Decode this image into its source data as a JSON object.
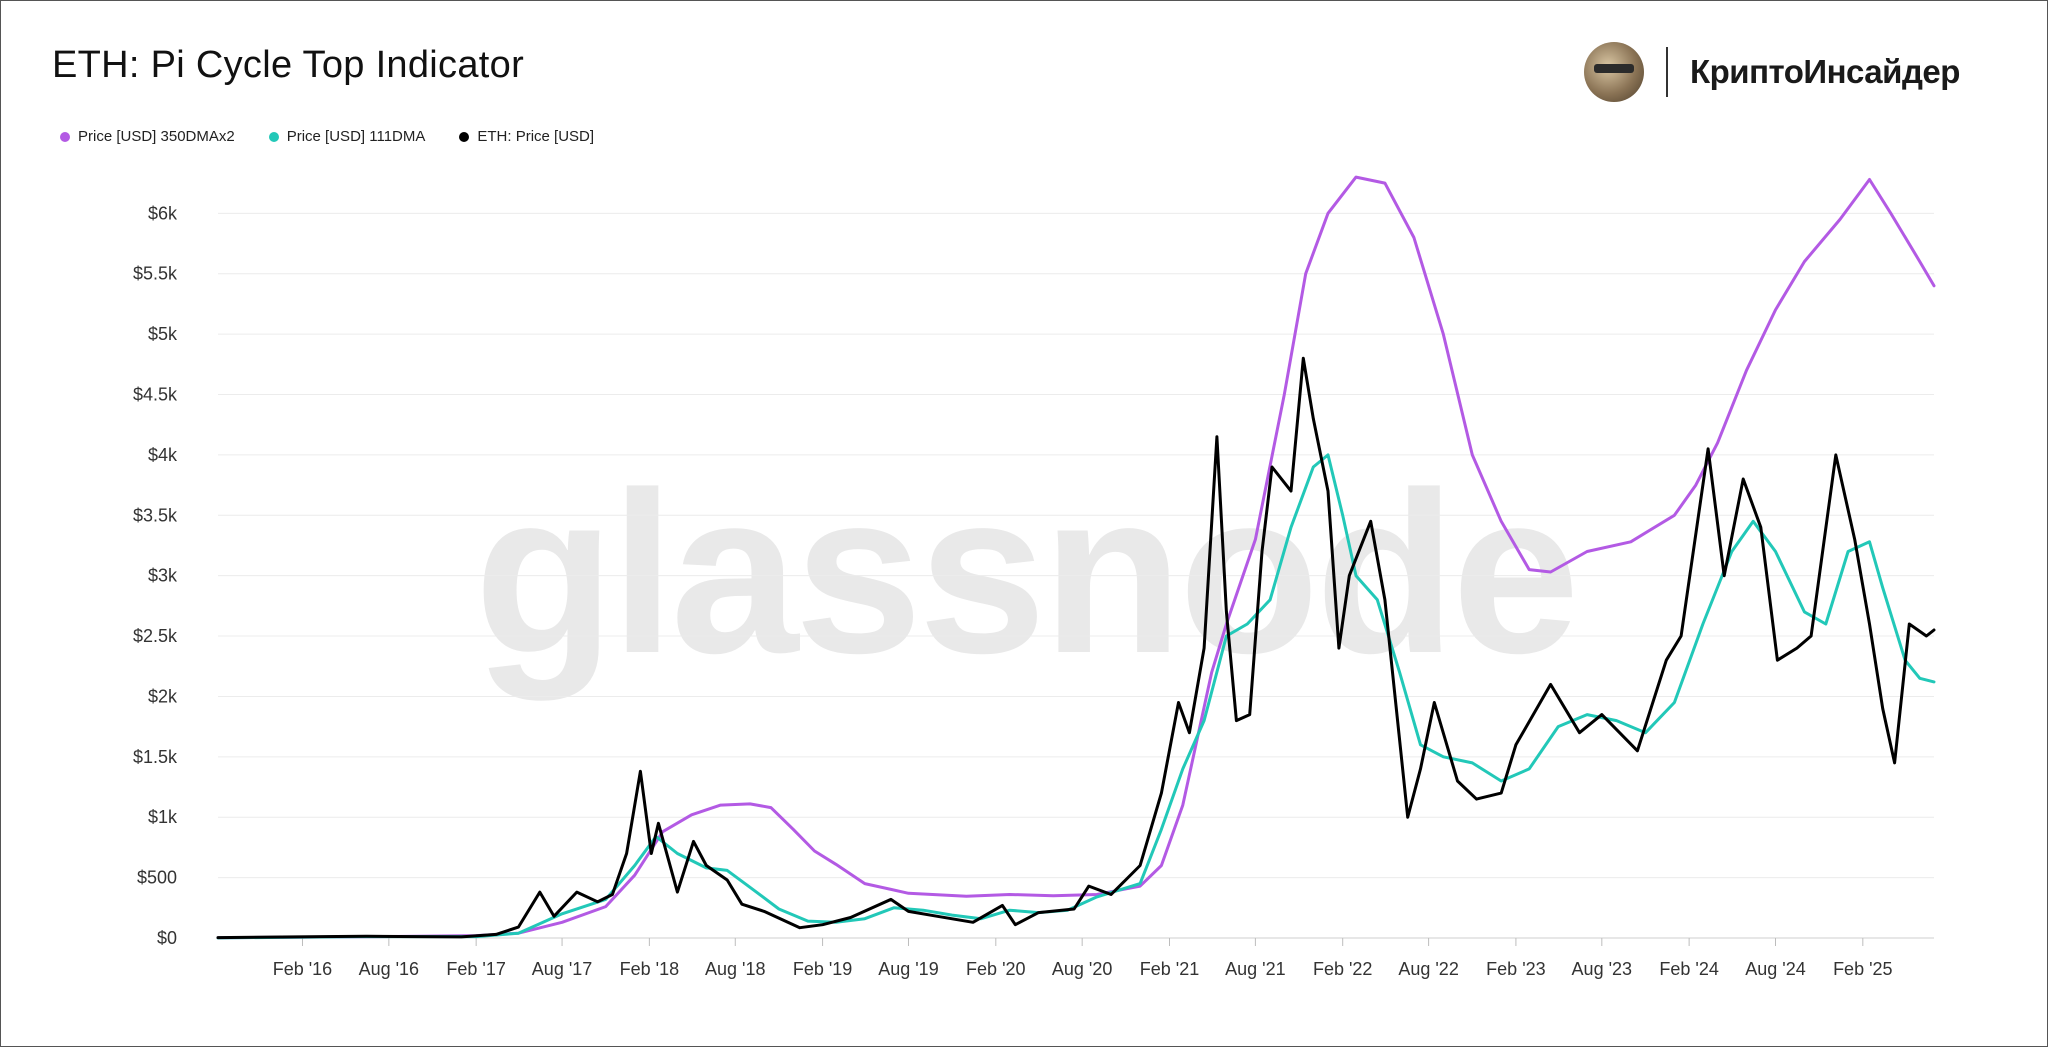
{
  "title": "ETH: Pi Cycle Top Indicator",
  "brand": {
    "name": "КриптоИнсайдер"
  },
  "watermark": "glassnode",
  "legend": [
    {
      "label": "Price [USD] 350DMAx2",
      "color": "#b35ae4"
    },
    {
      "label": "Price [USD] 111DMA",
      "color": "#22c8b8"
    },
    {
      "label": "ETH: Price [USD]",
      "color": "#000000"
    }
  ],
  "chart_data": {
    "type": "line",
    "title": "ETH: Pi Cycle Top Indicator",
    "x_range": [
      "2015-08-07",
      "2025-07-01"
    ],
    "ylim": [
      0,
      6400
    ],
    "grid": "horizontal",
    "legend_position": "top-left",
    "y_ticks": [
      {
        "value": 0,
        "label": "$0"
      },
      {
        "value": 500,
        "label": "$500"
      },
      {
        "value": 1000,
        "label": "$1k"
      },
      {
        "value": 1500,
        "label": "$1.5k"
      },
      {
        "value": 2000,
        "label": "$2k"
      },
      {
        "value": 2500,
        "label": "$2.5k"
      },
      {
        "value": 3000,
        "label": "$3k"
      },
      {
        "value": 3500,
        "label": "$3.5k"
      },
      {
        "value": 4000,
        "label": "$4k"
      },
      {
        "value": 4500,
        "label": "$4.5k"
      },
      {
        "value": 5000,
        "label": "$5k"
      },
      {
        "value": 5500,
        "label": "$5.5k"
      },
      {
        "value": 6000,
        "label": "$6k"
      }
    ],
    "x_ticks": [
      {
        "date": "2016-02-01",
        "label": "Feb '16"
      },
      {
        "date": "2016-08-01",
        "label": "Aug '16"
      },
      {
        "date": "2017-02-01",
        "label": "Feb '17"
      },
      {
        "date": "2017-08-01",
        "label": "Aug '17"
      },
      {
        "date": "2018-02-01",
        "label": "Feb '18"
      },
      {
        "date": "2018-08-01",
        "label": "Aug '18"
      },
      {
        "date": "2019-02-01",
        "label": "Feb '19"
      },
      {
        "date": "2019-08-01",
        "label": "Aug '19"
      },
      {
        "date": "2020-02-01",
        "label": "Feb '20"
      },
      {
        "date": "2020-08-01",
        "label": "Aug '20"
      },
      {
        "date": "2021-02-01",
        "label": "Feb '21"
      },
      {
        "date": "2021-08-01",
        "label": "Aug '21"
      },
      {
        "date": "2022-02-01",
        "label": "Feb '22"
      },
      {
        "date": "2022-08-01",
        "label": "Aug '22"
      },
      {
        "date": "2023-02-01",
        "label": "Feb '23"
      },
      {
        "date": "2023-08-01",
        "label": "Aug '23"
      },
      {
        "date": "2024-02-01",
        "label": "Feb '24"
      },
      {
        "date": "2024-08-01",
        "label": "Aug '24"
      },
      {
        "date": "2025-02-01",
        "label": "Feb '25"
      }
    ],
    "series": [
      {
        "name": "Price [USD] 350DMAx2",
        "color": "#b35ae4",
        "points": [
          [
            "2015-08-07",
            2
          ],
          [
            "2016-06-01",
            10
          ],
          [
            "2017-02-01",
            20
          ],
          [
            "2017-05-01",
            40
          ],
          [
            "2017-08-01",
            130
          ],
          [
            "2017-11-01",
            260
          ],
          [
            "2018-01-01",
            520
          ],
          [
            "2018-03-01",
            880
          ],
          [
            "2018-05-01",
            1020
          ],
          [
            "2018-07-01",
            1100
          ],
          [
            "2018-09-01",
            1110
          ],
          [
            "2018-10-15",
            1080
          ],
          [
            "2018-12-01",
            900
          ],
          [
            "2019-01-15",
            720
          ],
          [
            "2019-03-01",
            610
          ],
          [
            "2019-05-01",
            450
          ],
          [
            "2019-08-01",
            370
          ],
          [
            "2019-12-01",
            345
          ],
          [
            "2020-03-01",
            360
          ],
          [
            "2020-06-01",
            350
          ],
          [
            "2020-09-01",
            360
          ],
          [
            "2020-12-01",
            430
          ],
          [
            "2021-01-15",
            600
          ],
          [
            "2021-03-01",
            1100
          ],
          [
            "2021-05-01",
            2200
          ],
          [
            "2021-06-01",
            2600
          ],
          [
            "2021-08-01",
            3300
          ],
          [
            "2021-10-01",
            4500
          ],
          [
            "2021-11-15",
            5500
          ],
          [
            "2022-01-01",
            6000
          ],
          [
            "2022-03-01",
            6300
          ],
          [
            "2022-05-01",
            6250
          ],
          [
            "2022-07-01",
            5800
          ],
          [
            "2022-09-01",
            5000
          ],
          [
            "2022-11-01",
            4000
          ],
          [
            "2023-01-01",
            3450
          ],
          [
            "2023-03-01",
            3050
          ],
          [
            "2023-04-15",
            3030
          ],
          [
            "2023-07-01",
            3200
          ],
          [
            "2023-10-01",
            3280
          ],
          [
            "2024-01-01",
            3500
          ],
          [
            "2024-02-15",
            3750
          ],
          [
            "2024-04-01",
            4100
          ],
          [
            "2024-06-01",
            4700
          ],
          [
            "2024-08-01",
            5200
          ],
          [
            "2024-10-01",
            5600
          ],
          [
            "2024-12-15",
            5950
          ],
          [
            "2025-02-15",
            6280
          ],
          [
            "2025-04-01",
            6000
          ],
          [
            "2025-06-01",
            5600
          ],
          [
            "2025-07-01",
            5400
          ]
        ]
      },
      {
        "name": "Price [USD] 111DMA",
        "color": "#22c8b8",
        "points": [
          [
            "2015-08-07",
            1
          ],
          [
            "2016-06-01",
            12
          ],
          [
            "2017-02-01",
            12
          ],
          [
            "2017-05-01",
            40
          ],
          [
            "2017-08-01",
            200
          ],
          [
            "2017-11-01",
            320
          ],
          [
            "2018-01-01",
            600
          ],
          [
            "2018-02-15",
            840
          ],
          [
            "2018-04-01",
            700
          ],
          [
            "2018-06-01",
            580
          ],
          [
            "2018-07-15",
            560
          ],
          [
            "2018-09-01",
            420
          ],
          [
            "2018-11-01",
            240
          ],
          [
            "2019-01-01",
            140
          ],
          [
            "2019-03-01",
            130
          ],
          [
            "2019-05-01",
            160
          ],
          [
            "2019-07-01",
            250
          ],
          [
            "2019-09-01",
            230
          ],
          [
            "2019-11-01",
            190
          ],
          [
            "2020-01-01",
            160
          ],
          [
            "2020-03-01",
            230
          ],
          [
            "2020-05-01",
            210
          ],
          [
            "2020-07-01",
            230
          ],
          [
            "2020-09-01",
            340
          ],
          [
            "2020-12-01",
            450
          ],
          [
            "2021-01-15",
            900
          ],
          [
            "2021-03-01",
            1400
          ],
          [
            "2021-04-15",
            1800
          ],
          [
            "2021-06-01",
            2500
          ],
          [
            "2021-07-15",
            2600
          ],
          [
            "2021-09-01",
            2800
          ],
          [
            "2021-10-15",
            3400
          ],
          [
            "2021-12-01",
            3900
          ],
          [
            "2022-01-01",
            4000
          ],
          [
            "2022-02-01",
            3500
          ],
          [
            "2022-03-01",
            3000
          ],
          [
            "2022-04-15",
            2800
          ],
          [
            "2022-06-01",
            2200
          ],
          [
            "2022-07-15",
            1600
          ],
          [
            "2022-09-01",
            1500
          ],
          [
            "2022-11-01",
            1450
          ],
          [
            "2023-01-01",
            1300
          ],
          [
            "2023-03-01",
            1400
          ],
          [
            "2023-05-01",
            1750
          ],
          [
            "2023-07-01",
            1850
          ],
          [
            "2023-09-01",
            1800
          ],
          [
            "2023-11-01",
            1700
          ],
          [
            "2024-01-01",
            1950
          ],
          [
            "2024-03-01",
            2600
          ],
          [
            "2024-05-01",
            3200
          ],
          [
            "2024-06-15",
            3450
          ],
          [
            "2024-08-01",
            3200
          ],
          [
            "2024-10-01",
            2700
          ],
          [
            "2024-11-15",
            2600
          ],
          [
            "2025-01-01",
            3200
          ],
          [
            "2025-02-15",
            3280
          ],
          [
            "2025-03-15",
            2900
          ],
          [
            "2025-05-01",
            2300
          ],
          [
            "2025-06-01",
            2150
          ],
          [
            "2025-07-01",
            2120
          ]
        ]
      },
      {
        "name": "ETH: Price [USD]",
        "color": "#000000",
        "points": [
          [
            "2015-08-07",
            3
          ],
          [
            "2016-03-15",
            12
          ],
          [
            "2016-06-15",
            15
          ],
          [
            "2016-10-01",
            12
          ],
          [
            "2017-01-01",
            9
          ],
          [
            "2017-03-15",
            30
          ],
          [
            "2017-05-01",
            90
          ],
          [
            "2017-06-15",
            380
          ],
          [
            "2017-07-15",
            180
          ],
          [
            "2017-09-01",
            380
          ],
          [
            "2017-10-15",
            300
          ],
          [
            "2017-11-15",
            360
          ],
          [
            "2017-12-15",
            700
          ],
          [
            "2018-01-13",
            1380
          ],
          [
            "2018-02-05",
            700
          ],
          [
            "2018-02-20",
            950
          ],
          [
            "2018-04-01",
            380
          ],
          [
            "2018-05-05",
            800
          ],
          [
            "2018-06-01",
            600
          ],
          [
            "2018-07-15",
            480
          ],
          [
            "2018-08-15",
            280
          ],
          [
            "2018-10-01",
            220
          ],
          [
            "2018-12-15",
            85
          ],
          [
            "2019-02-01",
            110
          ],
          [
            "2019-04-01",
            170
          ],
          [
            "2019-06-25",
            320
          ],
          [
            "2019-08-01",
            220
          ],
          [
            "2019-10-01",
            180
          ],
          [
            "2019-12-15",
            130
          ],
          [
            "2020-02-15",
            270
          ],
          [
            "2020-03-13",
            110
          ],
          [
            "2020-05-01",
            210
          ],
          [
            "2020-07-15",
            240
          ],
          [
            "2020-08-15",
            430
          ],
          [
            "2020-10-01",
            360
          ],
          [
            "2020-12-01",
            600
          ],
          [
            "2021-01-15",
            1200
          ],
          [
            "2021-02-20",
            1950
          ],
          [
            "2021-03-15",
            1700
          ],
          [
            "2021-04-15",
            2400
          ],
          [
            "2021-05-12",
            4150
          ],
          [
            "2021-06-01",
            2700
          ],
          [
            "2021-06-22",
            1800
          ],
          [
            "2021-07-20",
            1850
          ],
          [
            "2021-08-15",
            3200
          ],
          [
            "2021-09-05",
            3900
          ],
          [
            "2021-10-15",
            3700
          ],
          [
            "2021-11-10",
            4800
          ],
          [
            "2021-12-01",
            4300
          ],
          [
            "2022-01-01",
            3700
          ],
          [
            "2022-01-24",
            2400
          ],
          [
            "2022-02-15",
            3000
          ],
          [
            "2022-04-01",
            3450
          ],
          [
            "2022-05-01",
            2800
          ],
          [
            "2022-06-18",
            1000
          ],
          [
            "2022-07-15",
            1400
          ],
          [
            "2022-08-13",
            1950
          ],
          [
            "2022-10-01",
            1300
          ],
          [
            "2022-11-10",
            1150
          ],
          [
            "2023-01-01",
            1200
          ],
          [
            "2023-02-01",
            1600
          ],
          [
            "2023-04-15",
            2100
          ],
          [
            "2023-06-15",
            1700
          ],
          [
            "2023-08-01",
            1850
          ],
          [
            "2023-10-15",
            1550
          ],
          [
            "2023-12-15",
            2300
          ],
          [
            "2024-01-15",
            2500
          ],
          [
            "2024-03-12",
            4050
          ],
          [
            "2024-04-15",
            3000
          ],
          [
            "2024-05-25",
            3800
          ],
          [
            "2024-07-01",
            3400
          ],
          [
            "2024-08-05",
            2300
          ],
          [
            "2024-09-15",
            2400
          ],
          [
            "2024-10-15",
            2500
          ],
          [
            "2024-12-06",
            4000
          ],
          [
            "2025-01-15",
            3300
          ],
          [
            "2025-02-15",
            2600
          ],
          [
            "2025-03-15",
            1900
          ],
          [
            "2025-04-09",
            1450
          ],
          [
            "2025-05-10",
            2600
          ],
          [
            "2025-06-15",
            2500
          ],
          [
            "2025-07-01",
            2550
          ]
        ]
      }
    ]
  }
}
